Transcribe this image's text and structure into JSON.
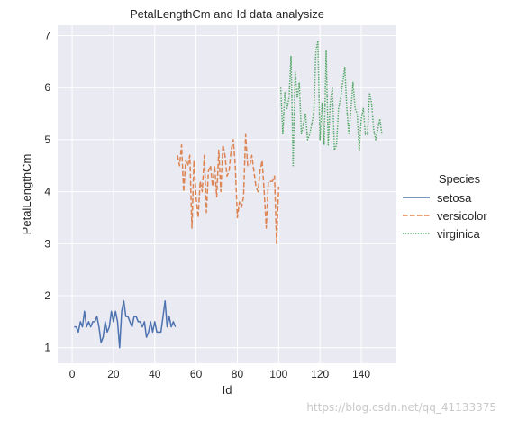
{
  "chart_data": {
    "type": "line",
    "title": "PetalLengthCm and Id data analysize",
    "xlabel": "Id",
    "ylabel": "PetalLengthCm",
    "xlim": [
      -7,
      157
    ],
    "ylim": [
      0.7,
      7.2
    ],
    "xticks": [
      "0",
      "20",
      "40",
      "60",
      "80",
      "100",
      "120",
      "140"
    ],
    "yticks": [
      "1",
      "2",
      "3",
      "4",
      "5",
      "6",
      "7"
    ],
    "grid": true,
    "legend": {
      "title": "Species",
      "placement": "right"
    },
    "background": "#eaeaf2",
    "series": [
      {
        "name": "setosa",
        "color": "#4c72b0",
        "dash": "solid",
        "x": [
          1,
          2,
          3,
          4,
          5,
          6,
          7,
          8,
          9,
          10,
          11,
          12,
          13,
          14,
          15,
          16,
          17,
          18,
          19,
          20,
          21,
          22,
          23,
          24,
          25,
          26,
          27,
          28,
          29,
          30,
          31,
          32,
          33,
          34,
          35,
          36,
          37,
          38,
          39,
          40,
          41,
          42,
          43,
          44,
          45,
          46,
          47,
          48,
          49,
          50
        ],
        "y": [
          1.4,
          1.4,
          1.3,
          1.5,
          1.4,
          1.7,
          1.4,
          1.5,
          1.4,
          1.5,
          1.5,
          1.6,
          1.4,
          1.1,
          1.2,
          1.5,
          1.3,
          1.4,
          1.7,
          1.5,
          1.7,
          1.5,
          1.0,
          1.7,
          1.9,
          1.6,
          1.6,
          1.5,
          1.4,
          1.6,
          1.6,
          1.5,
          1.5,
          1.4,
          1.5,
          1.2,
          1.3,
          1.5,
          1.3,
          1.5,
          1.3,
          1.3,
          1.3,
          1.6,
          1.9,
          1.4,
          1.6,
          1.4,
          1.5,
          1.4
        ]
      },
      {
        "name": "versicolor",
        "color": "#dd8452",
        "dash": "dashed",
        "x": [
          51,
          52,
          53,
          54,
          55,
          56,
          57,
          58,
          59,
          60,
          61,
          62,
          63,
          64,
          65,
          66,
          67,
          68,
          69,
          70,
          71,
          72,
          73,
          74,
          75,
          76,
          77,
          78,
          79,
          80,
          81,
          82,
          83,
          84,
          85,
          86,
          87,
          88,
          89,
          90,
          91,
          92,
          93,
          94,
          95,
          96,
          97,
          98,
          99,
          100
        ],
        "y": [
          4.7,
          4.5,
          4.9,
          4.0,
          4.6,
          4.5,
          4.7,
          3.3,
          4.6,
          3.9,
          3.5,
          4.2,
          4.0,
          4.7,
          3.6,
          4.4,
          4.5,
          4.1,
          4.5,
          3.9,
          4.8,
          4.0,
          4.9,
          4.7,
          4.3,
          4.4,
          4.8,
          5.0,
          4.5,
          3.5,
          3.8,
          3.7,
          3.9,
          5.1,
          4.5,
          4.5,
          4.7,
          4.4,
          4.1,
          4.0,
          4.4,
          4.6,
          4.0,
          3.3,
          4.2,
          4.2,
          4.2,
          4.3,
          3.0,
          4.1
        ]
      },
      {
        "name": "virginica",
        "color": "#55a868",
        "dash": "dotted",
        "x": [
          101,
          102,
          103,
          104,
          105,
          106,
          107,
          108,
          109,
          110,
          111,
          112,
          113,
          114,
          115,
          116,
          117,
          118,
          119,
          120,
          121,
          122,
          123,
          124,
          125,
          126,
          127,
          128,
          129,
          130,
          131,
          132,
          133,
          134,
          135,
          136,
          137,
          138,
          139,
          140,
          141,
          142,
          143,
          144,
          145,
          146,
          147,
          148,
          149,
          150
        ],
        "y": [
          6.0,
          5.1,
          5.9,
          5.6,
          5.8,
          6.6,
          4.5,
          6.3,
          5.8,
          6.1,
          5.1,
          5.3,
          5.5,
          5.0,
          5.1,
          5.3,
          5.5,
          6.7,
          6.9,
          5.0,
          5.7,
          4.9,
          6.7,
          4.9,
          5.7,
          6.0,
          4.8,
          4.9,
          5.6,
          5.8,
          6.1,
          6.4,
          5.6,
          5.1,
          5.6,
          6.1,
          5.6,
          5.5,
          4.8,
          5.4,
          5.6,
          5.1,
          5.1,
          5.9,
          5.7,
          5.2,
          5.0,
          5.2,
          5.4,
          5.1
        ]
      }
    ]
  },
  "watermark": "https://blog.csdn.net/qq_41133375"
}
